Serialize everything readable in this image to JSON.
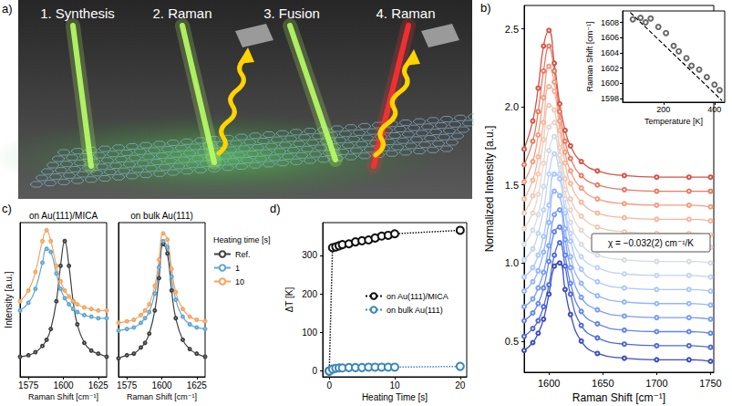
{
  "chart_data": [
    {
      "panel": "a)",
      "type": "diagram",
      "steps": [
        "1. Synthesis",
        "2. Raman",
        "3. Fusion",
        "4. Raman"
      ]
    },
    {
      "panel": "b)",
      "type": "line",
      "x_label": "Raman Shift [cm⁻¹]",
      "y_label": "Normalized Intensity [a.u.]",
      "annotation": "χ = −0.032(2) cm⁻¹/K",
      "marker": "circle",
      "line_style": "solid",
      "xlim": [
        1577,
        1753
      ],
      "xticks": [
        1600,
        1650,
        1700,
        1750
      ],
      "ylim": [
        0.3,
        2.65
      ],
      "yticks": [
        0.5,
        {
          "value": 1,
          "label": "1.0"
        },
        1.5,
        {
          "value": 2,
          "label": "2.0"
        },
        2.5
      ],
      "x": [
        1577,
        1585,
        1590,
        1595,
        1600,
        1605,
        1610,
        1615,
        1620,
        1630,
        1645,
        1670,
        1700,
        1730,
        1750
      ],
      "series": [
        {
          "color": "#3b4cc0",
          "values": [
            0.44,
            0.49,
            0.55,
            0.64,
            0.8,
            0.98,
            1.0,
            0.83,
            0.67,
            0.5,
            0.42,
            0.39,
            0.38,
            0.38,
            0.37
          ]
        },
        {
          "color": "#4f69d9",
          "values": [
            0.53,
            0.58,
            0.63,
            0.72,
            0.86,
            1.05,
            1.13,
            0.98,
            0.8,
            0.6,
            0.52,
            0.48,
            0.47,
            0.47,
            0.46
          ]
        },
        {
          "color": "#6384eb",
          "values": [
            0.63,
            0.68,
            0.74,
            0.84,
            1.01,
            1.2,
            1.23,
            1.05,
            0.87,
            0.69,
            0.61,
            0.57,
            0.56,
            0.56,
            0.55
          ]
        },
        {
          "color": "#7a9df8",
          "values": [
            0.72,
            0.77,
            0.84,
            0.94,
            1.11,
            1.31,
            1.34,
            1.15,
            0.97,
            0.78,
            0.7,
            0.66,
            0.65,
            0.65,
            0.64
          ]
        },
        {
          "color": "#93b5fe",
          "values": [
            0.82,
            0.88,
            0.95,
            1.07,
            1.26,
            1.46,
            1.43,
            1.22,
            1.04,
            0.87,
            0.79,
            0.75,
            0.74,
            0.74,
            0.73
          ]
        },
        {
          "color": "#aac7fd",
          "values": [
            0.91,
            0.97,
            1.05,
            1.17,
            1.37,
            1.57,
            1.54,
            1.32,
            1.14,
            0.96,
            0.88,
            0.84,
            0.83,
            0.83,
            0.82
          ]
        },
        {
          "color": "#c0d4f5",
          "values": [
            1.02,
            1.09,
            1.19,
            1.34,
            1.57,
            1.7,
            1.57,
            1.34,
            1.19,
            1.04,
            0.97,
            0.93,
            0.92,
            0.92,
            0.91
          ]
        },
        {
          "color": "#d5dbe5",
          "values": [
            1.12,
            1.21,
            1.31,
            1.49,
            1.72,
            1.81,
            1.63,
            1.41,
            1.26,
            1.12,
            1.05,
            1.02,
            1.01,
            1.01,
            1.0
          ]
        },
        {
          "color": "#e6d7cf",
          "values": [
            1.22,
            1.32,
            1.44,
            1.64,
            1.87,
            1.9,
            1.69,
            1.47,
            1.34,
            1.21,
            1.14,
            1.11,
            1.1,
            1.1,
            1.1
          ]
        },
        {
          "color": "#f2c9b4",
          "values": [
            1.32,
            1.43,
            1.57,
            1.79,
            2.01,
            1.98,
            1.74,
            1.54,
            1.41,
            1.3,
            1.23,
            1.2,
            1.19,
            1.19,
            1.18
          ]
        },
        {
          "color": "#f6b69b",
          "values": [
            1.41,
            1.53,
            1.68,
            1.9,
            2.13,
            2.1,
            1.85,
            1.64,
            1.51,
            1.39,
            1.32,
            1.29,
            1.28,
            1.28,
            1.27
          ]
        },
        {
          "color": "#f39c80",
          "values": [
            1.52,
            1.65,
            1.82,
            2.06,
            2.26,
            2.16,
            1.91,
            1.71,
            1.59,
            1.48,
            1.41,
            1.38,
            1.37,
            1.37,
            1.36
          ]
        },
        {
          "color": "#e57a63",
          "values": [
            1.63,
            1.78,
            1.97,
            2.23,
            2.39,
            2.23,
            1.97,
            1.78,
            1.67,
            1.56,
            1.5,
            1.47,
            1.46,
            1.46,
            1.46
          ]
        },
        {
          "color": "#d65244",
          "values": [
            1.73,
            1.91,
            2.12,
            2.39,
            2.49,
            2.28,
            2.02,
            1.85,
            1.75,
            1.65,
            1.59,
            1.56,
            1.55,
            1.55,
            1.55
          ]
        }
      ]
    },
    {
      "type": "scatter",
      "x_label": "Temperature [K]",
      "y_label": "Raman Shift [cm⁻¹]",
      "xlim": [
        40,
        440
      ],
      "xticks": [
        200,
        400
      ],
      "ylim": [
        1597.5,
        1609.5
      ],
      "yticks": [
        1598,
        1600,
        1602,
        1604,
        1606,
        1608
      ],
      "series": [
        {
          "type": "scatter",
          "marker": "circle",
          "color": "#444444",
          "x": [
            80,
            110,
            130,
            150,
            180,
            210,
            240,
            260,
            290,
            310,
            340,
            370,
            400,
            420
          ],
          "values": [
            1608.4,
            1608.6,
            1608.0,
            1608.5,
            1607.4,
            1606.6,
            1604.9,
            1604.2,
            1603.3,
            1602.3,
            1601.8,
            1600.8,
            1599.8,
            1599.1
          ]
        },
        {
          "type": "line",
          "line_style": "dashed",
          "color": "#000000",
          "x": [
            70,
            430
          ],
          "values": [
            1609.3,
            1597.7
          ]
        }
      ]
    },
    {
      "panel": "c)",
      "type": "line",
      "title": "on Au(111)/MICA",
      "x_label": "Raman Shift [cm⁻¹]",
      "y_label": "Intensity [a.u.]",
      "tick_labels": "x",
      "legend": "right",
      "legend_title": "Heating time [s]",
      "marker": "circle",
      "xlim": [
        1569,
        1631
      ],
      "xticks": [
        1575,
        1600,
        1625
      ],
      "ylim": [
        0,
        1
      ],
      "x": [
        1569,
        1575,
        1580,
        1585,
        1588,
        1591,
        1595,
        1598,
        1601,
        1604,
        1607,
        1610,
        1615,
        1620,
        1625,
        1631
      ],
      "series": [
        {
          "name": "Ref.",
          "color": "#404040",
          "values": [
            0.13,
            0.14,
            0.16,
            0.2,
            0.24,
            0.31,
            0.49,
            0.72,
            0.88,
            0.72,
            0.49,
            0.34,
            0.22,
            0.17,
            0.15,
            0.13
          ]
        },
        {
          "name": "1",
          "color": "#5fa8d3",
          "values": [
            0.43,
            0.48,
            0.57,
            0.74,
            0.83,
            0.81,
            0.67,
            0.57,
            0.51,
            0.47,
            0.44,
            0.42,
            0.4,
            0.39,
            0.38,
            0.38
          ]
        },
        {
          "name": "10",
          "color": "#f7a35c",
          "values": [
            0.49,
            0.56,
            0.68,
            0.88,
            0.95,
            0.88,
            0.72,
            0.62,
            0.56,
            0.52,
            0.49,
            0.47,
            0.45,
            0.44,
            0.43,
            0.43
          ]
        }
      ]
    },
    {
      "type": "line",
      "title": "on bulk Au(111)",
      "x_label": "Raman Shift [cm⁻¹]",
      "tick_labels": "x",
      "marker": "circle",
      "xlim": [
        1569,
        1631
      ],
      "xticks": [
        1575,
        1600,
        1625
      ],
      "ylim": [
        0,
        1
      ],
      "x": [
        1569,
        1575,
        1580,
        1585,
        1588,
        1591,
        1595,
        1598,
        1601,
        1604,
        1607,
        1610,
        1615,
        1620,
        1625,
        1631
      ],
      "series": [
        {
          "name": "Ref.",
          "color": "#404040",
          "values": [
            0.12,
            0.14,
            0.15,
            0.19,
            0.22,
            0.28,
            0.43,
            0.64,
            0.86,
            0.8,
            0.56,
            0.38,
            0.24,
            0.18,
            0.15,
            0.13
          ]
        },
        {
          "name": "1",
          "color": "#5fa8d3",
          "values": [
            0.3,
            0.31,
            0.32,
            0.35,
            0.38,
            0.42,
            0.54,
            0.71,
            0.88,
            0.84,
            0.65,
            0.5,
            0.39,
            0.34,
            0.32,
            0.31
          ]
        },
        {
          "name": "10",
          "color": "#f7a35c",
          "values": [
            0.35,
            0.36,
            0.37,
            0.4,
            0.43,
            0.47,
            0.59,
            0.76,
            0.93,
            0.89,
            0.7,
            0.55,
            0.44,
            0.39,
            0.37,
            0.36
          ]
        }
      ]
    },
    {
      "panel": "d)",
      "type": "scatter",
      "x_label": "Heating Time [s]",
      "y_label": "ΔT [K]",
      "legend": "right",
      "marker": "circle",
      "line_style": "dotted",
      "xlim": [
        -1,
        21
      ],
      "xticks": [
        0,
        10,
        20
      ],
      "ylim": [
        -15,
        385
      ],
      "yticks": [
        0,
        100,
        200,
        300
      ],
      "x": [
        0,
        0.5,
        1,
        1.5,
        2,
        3,
        4,
        5,
        6,
        7,
        8,
        9,
        10,
        20
      ],
      "series": [
        {
          "name": "on Au(111)/MICA",
          "color": "#111111",
          "values": [
            0,
            320,
            322,
            325,
            328,
            330,
            335,
            338,
            340,
            345,
            350,
            352,
            356,
            365
          ]
        },
        {
          "name": "on bulk Au(111)",
          "color": "#3a86bf",
          "values": [
            0,
            5,
            7,
            8,
            8,
            9,
            9,
            9,
            10,
            10,
            10,
            10,
            10,
            12
          ]
        }
      ]
    }
  ]
}
